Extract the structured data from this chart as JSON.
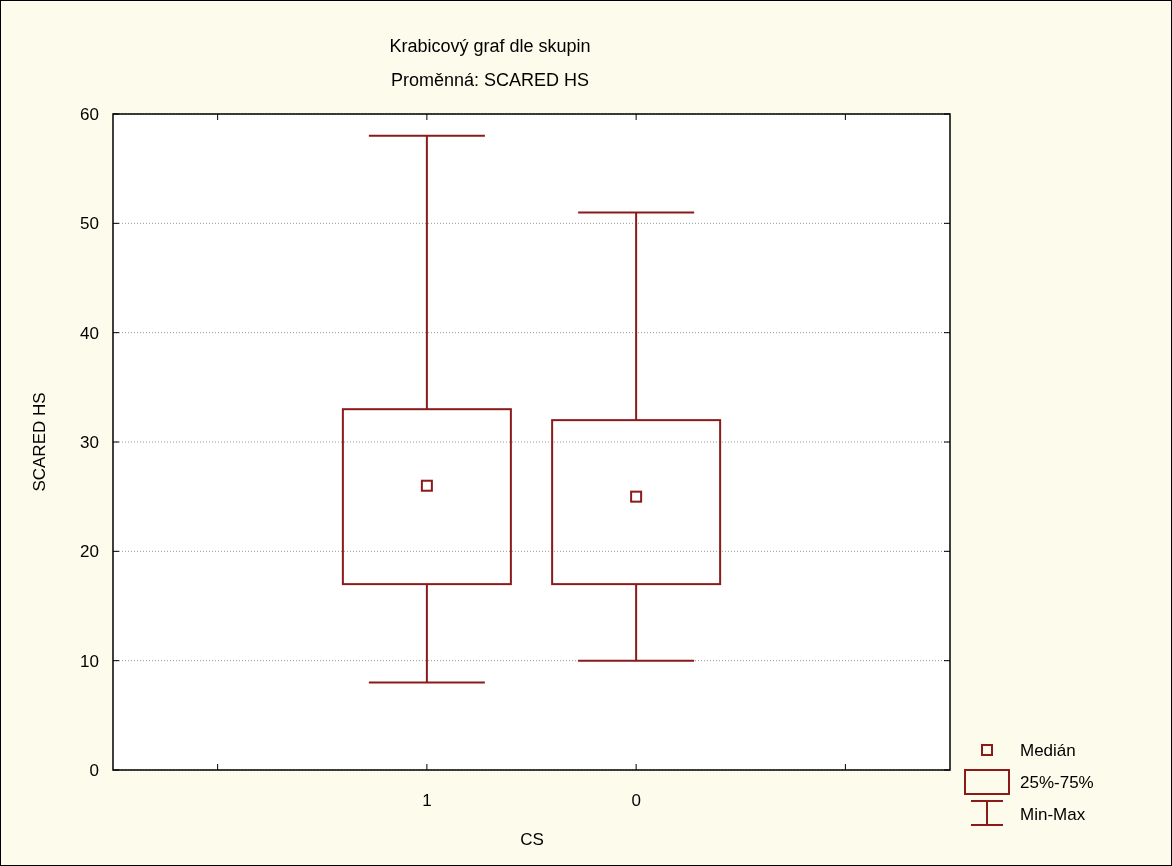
{
  "chart_data": {
    "type": "box",
    "title": "Krabicový graf dle skupin",
    "subtitle": "Proměnná: SCARED HS",
    "xlabel": "CS",
    "ylabel": "SCARED HS",
    "categories": [
      "1",
      "0"
    ],
    "boxes": [
      {
        "low": 8,
        "q1": 17,
        "median": 26,
        "q3": 33,
        "high": 58
      },
      {
        "low": 10,
        "q1": 17,
        "median": 25,
        "q3": 32,
        "high": 51
      }
    ],
    "color": "#8b1a1a",
    "ylim": [
      0,
      60
    ],
    "yticks": [
      0,
      10,
      20,
      30,
      40,
      50,
      60
    ],
    "grid": "y",
    "annotations": [
      "Medián",
      "25%-75%",
      "Min-Max"
    ]
  }
}
